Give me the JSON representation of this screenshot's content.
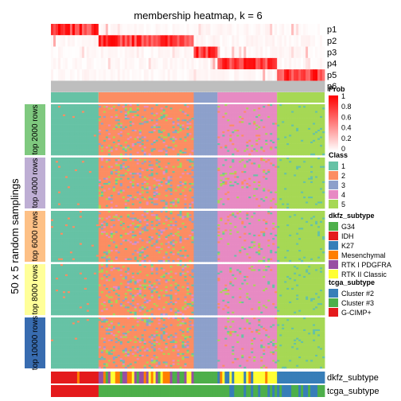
{
  "chart_data": {
    "type": "heatmap",
    "title": "membership heatmap, k = 6",
    "ylabel": "50 x 5 random samplings",
    "n_samples": 115,
    "prob_rows": [
      "p1",
      "p2",
      "p3",
      "p4",
      "p5",
      "p6"
    ],
    "class_blocks": [
      {
        "class": "1",
        "count": 20
      },
      {
        "class": "2",
        "count": 40
      },
      {
        "class": "3",
        "count": 10
      },
      {
        "class": "4",
        "count": 25
      },
      {
        "class": "5",
        "count": 20
      }
    ],
    "top_n_groups": [
      {
        "label": "top 2000 rows",
        "color": "#7FC97F"
      },
      {
        "label": "top 4000 rows",
        "color": "#BEAED4"
      },
      {
        "label": "top 6000 rows",
        "color": "#FDC086"
      },
      {
        "label": "top 8000 rows",
        "color": "#FFFF99"
      },
      {
        "label": "top 10000 rows",
        "color": "#386CB0"
      }
    ],
    "bottom_annotations": [
      "dkfz_subtype",
      "tcga_subtype"
    ],
    "legend": {
      "prob": {
        "title": "Prob",
        "ticks": [
          "1",
          "0.8",
          "0.6",
          "0.4",
          "0.2",
          "0"
        ]
      },
      "class": {
        "title": "Class",
        "items": [
          {
            "label": "1",
            "color": "#66C2A5"
          },
          {
            "label": "2",
            "color": "#FC8D62"
          },
          {
            "label": "3",
            "color": "#8DA0CB"
          },
          {
            "label": "4",
            "color": "#E78AC3"
          },
          {
            "label": "5",
            "color": "#A6D854"
          }
        ]
      },
      "dkfz_subtype": {
        "title": "dkfz_subtype",
        "items": [
          {
            "label": "G34",
            "color": "#4DAF4A"
          },
          {
            "label": "IDH",
            "color": "#E41A1C"
          },
          {
            "label": "K27",
            "color": "#377EB8"
          },
          {
            "label": "Mesenchymal",
            "color": "#FF7F00"
          },
          {
            "label": "RTK I PDGFRA",
            "color": "#984EA3"
          },
          {
            "label": "RTK II Classic",
            "color": "#FFFF33"
          }
        ]
      },
      "tcga_subtype": {
        "title": "tcga_subtype",
        "items": [
          {
            "label": "Cluster #2",
            "color": "#377EB8"
          },
          {
            "label": "Cluster #3",
            "color": "#4DAF4A"
          },
          {
            "label": "G-CIMP+",
            "color": "#E41A1C"
          }
        ]
      }
    }
  }
}
